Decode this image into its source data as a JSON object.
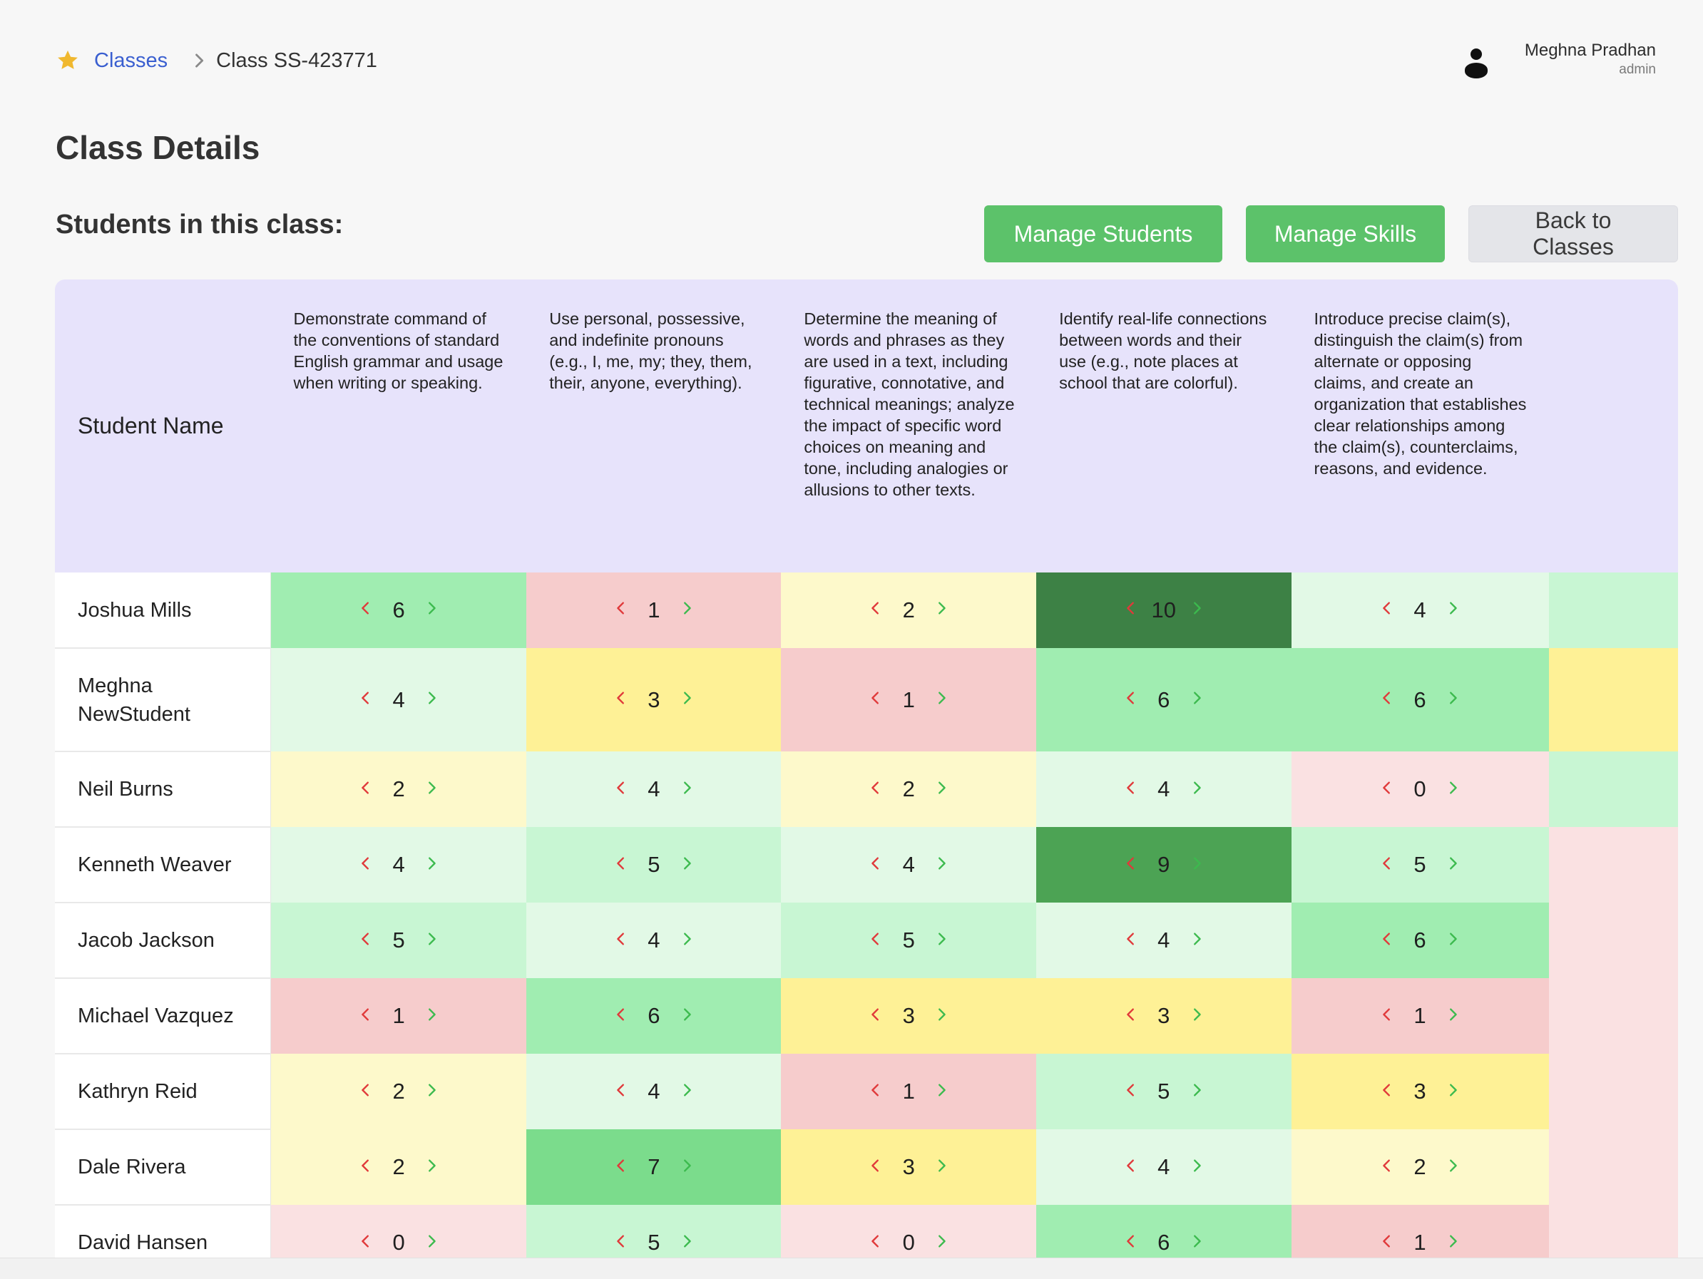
{
  "breadcrumb": {
    "root_label": "Classes",
    "current_label": "Class SS-423771"
  },
  "user": {
    "name": "Meghna Pradhan",
    "role": "admin"
  },
  "page": {
    "title": "Class Details",
    "section_title": "Students in this class:"
  },
  "actions": {
    "manage_students": "Manage Students",
    "manage_skills": "Manage Skills",
    "back": "Back to Classes"
  },
  "table": {
    "name_header": "Student Name",
    "skills": [
      "Demonstrate command of the conventions of standard English grammar and usage when writing or speaking.",
      "Use personal, possessive, and indefinite pronouns (e.g., I, me, my; they, them, their, anyone, everything).",
      "Determine the meaning of words and phrases as they are used in a text, including figurative, connotative, and technical meanings; analyze the impact of specific word choices on meaning and tone, including analogies or allusions to other texts.",
      "Identify real-life connections between words and their use (e.g., note places at school that are colorful).",
      "Introduce precise claim(s), distinguish the claim(s) from alternate or opposing claims, and create an organization that establishes clear relationships among the claim(s), counterclaims, reasons, and evidence."
    ],
    "students": [
      {
        "name": "Joshua Mills",
        "scores": [
          "6",
          "1",
          "2",
          "10",
          "4"
        ]
      },
      {
        "name": "Meghna NewStudent",
        "scores": [
          "4",
          "3",
          "1",
          "6",
          "6"
        ]
      },
      {
        "name": "Neil Burns",
        "scores": [
          "2",
          "4",
          "2",
          "4",
          "0"
        ]
      },
      {
        "name": "Kenneth Weaver",
        "scores": [
          "4",
          "5",
          "4",
          "9",
          "5"
        ]
      },
      {
        "name": "Jacob Jackson",
        "scores": [
          "5",
          "4",
          "5",
          "4",
          "6"
        ]
      },
      {
        "name": "Michael Vazquez",
        "scores": [
          "1",
          "6",
          "3",
          "3",
          "1"
        ]
      },
      {
        "name": "Kathryn Reid",
        "scores": [
          "2",
          "4",
          "1",
          "5",
          "3"
        ]
      },
      {
        "name": "Dale Rivera",
        "scores": [
          "2",
          "7",
          "3",
          "4",
          "2"
        ]
      },
      {
        "name": "David Hansen",
        "scores": [
          "0",
          "5",
          "0",
          "6",
          "1"
        ]
      }
    ]
  },
  "colors": {
    "link": "#3a5fd0",
    "green_button": "#5cc26a",
    "header_bg": "#e7e3fb",
    "decrement_arrow": "#e0393a",
    "increment_arrow": "#3cba4e"
  },
  "icons": {
    "breadcrumb_root": "star-icon",
    "breadcrumb_separator": "chevron-right-icon",
    "user": "user-icon",
    "decrement": "chevron-left-icon",
    "increment": "chevron-right-icon"
  }
}
